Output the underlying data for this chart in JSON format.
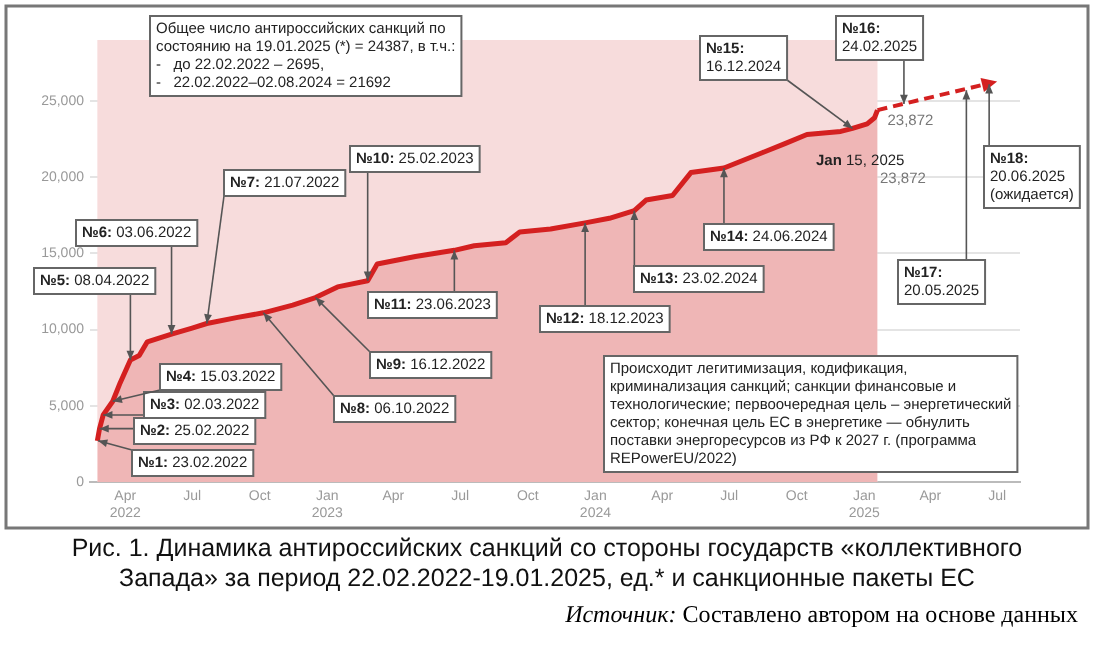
{
  "chart_data": {
    "type": "area",
    "title": "Рис. 1. Динамика антироссийских санкций со стороны государств «коллективного Запада» за период 22.02.2022-19.01.2025, ед.* и санкционные пакеты ЕС",
    "xlim": [
      "2022-02-12",
      "2025-08-01"
    ],
    "xticks": [
      {
        "value": "2022-04",
        "label": "Apr 2022"
      },
      {
        "value": "2022-07",
        "label": "Jul"
      },
      {
        "value": "2022-10",
        "label": "Oct"
      },
      {
        "value": "2023-01",
        "label": "Jan 2023"
      },
      {
        "value": "2023-04",
        "label": "Apr"
      },
      {
        "value": "2023-07",
        "label": "Jul"
      },
      {
        "value": "2023-10",
        "label": "Oct"
      },
      {
        "value": "2024-01",
        "label": "Jan 2024"
      },
      {
        "value": "2024-04",
        "label": "Apr"
      },
      {
        "value": "2024-07",
        "label": "Jul"
      },
      {
        "value": "2024-10",
        "label": "Oct"
      },
      {
        "value": "2025-01",
        "label": "Jan 2025"
      },
      {
        "value": "2025-04",
        "label": "Apr"
      },
      {
        "value": "2025-07",
        "label": "Jul"
      }
    ],
    "ylim": [
      0,
      29000
    ],
    "yticks": [
      0,
      {
        "value": 5000,
        "label": "5,000"
      },
      {
        "value": 10000,
        "label": "10,000"
      },
      {
        "value": 15000,
        "label": "15,000"
      },
      {
        "value": 20000,
        "label": "20,000"
      },
      {
        "value": 25000,
        "label": "25,000"
      }
    ],
    "grid": "y",
    "legend": false,
    "bands": [
      {
        "axis": "x",
        "from": "2022-02-22",
        "to": "2025-01-19",
        "color": "#f7dcdc"
      }
    ],
    "series": [
      {
        "type": "area",
        "color": "#d42020",
        "x": [
          "2022-02-22",
          "2022-02-25",
          "2022-03-02",
          "2022-03-15",
          "2022-03-25",
          "2022-04-08",
          "2022-04-20",
          "2022-05-01",
          "2022-06-03",
          "2022-07-01",
          "2022-07-21",
          "2022-09-01",
          "2022-10-06",
          "2022-11-15",
          "2022-12-16",
          "2023-01-15",
          "2023-02-25",
          "2023-03-10",
          "2023-05-01",
          "2023-06-23",
          "2023-07-20",
          "2023-09-01",
          "2023-09-20",
          "2023-11-01",
          "2023-12-18",
          "2024-01-20",
          "2024-02-23",
          "2024-03-10",
          "2024-04-15",
          "2024-05-10",
          "2024-06-24",
          "2024-08-15",
          "2024-09-15",
          "2024-10-15",
          "2024-11-30",
          "2024-12-16",
          "2025-01-05",
          "2025-01-15",
          "2025-01-19"
        ],
        "values": [
          2700,
          3500,
          4400,
          5300,
          6500,
          8000,
          8300,
          9200,
          9700,
          10100,
          10400,
          10800,
          11100,
          11600,
          12100,
          12800,
          13200,
          14300,
          14800,
          15200,
          15500,
          15700,
          16400,
          16600,
          17000,
          17300,
          17800,
          18500,
          18800,
          20300,
          20600,
          21600,
          22200,
          22800,
          23000,
          23200,
          23500,
          23900,
          24400
        ]
      },
      {
        "type": "line",
        "line_style": "dashed",
        "color": "#d42020",
        "x": [
          "2025-01-19",
          "2025-06-15"
        ],
        "values": [
          24400,
          26100
        ]
      }
    ],
    "annotations": [
      "Общее число антироссийских санкций по состоянию на 19.01.2025 (*) = 24387, в т.ч.:\n-   до 22.02.2022 – 2695,\n-   22.02.2022–02.08.2024 = 21692",
      "Происходит легитимизация, кодификация, криминализация санкций; санкции финансовые и технологические; первоочередная цель – энергетический сектор; конечная цель ЕС в энергетике — обнулить поставки энергоресурсов из РФ к 2027 г. (программа REPowerEU/2022)",
      {
        "text": "№1: 23.02.2022",
        "x": "2022-02-23",
        "y": 2700
      },
      {
        "text": "№2: 25.02.2022",
        "x": "2022-02-25",
        "y": 3500
      },
      {
        "text": "№3: 02.03.2022",
        "x": "2022-03-02",
        "y": 4400
      },
      {
        "text": "№4: 15.03.2022",
        "x": "2022-03-15",
        "y": 5300
      },
      {
        "text": "№5: 08.04.2022",
        "x": "2022-04-08",
        "y": 8000
      },
      {
        "text": "№6: 03.06.2022",
        "x": "2022-06-03",
        "y": 9700
      },
      {
        "text": "№7: 21.07.2022",
        "x": "2022-07-21",
        "y": 10400
      },
      {
        "text": "№8: 06.10.2022",
        "x": "2022-10-06",
        "y": 11100
      },
      {
        "text": "№9: 16.12.2022",
        "x": "2022-12-16",
        "y": 12100
      },
      {
        "text": "№10: 25.02.2023",
        "x": "2023-02-25",
        "y": 13200
      },
      {
        "text": "№11: 23.06.2023",
        "x": "2023-06-23",
        "y": 15200
      },
      {
        "text": "№12: 18.12.2023",
        "x": "2023-12-18",
        "y": 17000
      },
      {
        "text": "№13: 23.02.2024",
        "x": "2024-02-23",
        "y": 17800
      },
      {
        "text": "№14: 24.06.2024",
        "x": "2024-06-24",
        "y": 20600
      },
      {
        "text": "№15: 16.12.2024",
        "x": "2024-12-16",
        "y": 23200
      },
      {
        "text": "№16: 24.02.2025",
        "x": "2025-02-24",
        "y": 24800
      },
      {
        "text": "№17: 20.05.2025",
        "x": "2025-05-20",
        "y": 25700
      },
      {
        "text": "№18: 20.06.2025 (ожидается)",
        "x": "2025-06-20",
        "y": 26100
      },
      "Jan 15, 2025",
      "23,872",
      {
        "text": "23,872",
        "x": "2025-01-19",
        "y": 24400
      },
      "Источник: Составлено автором на основе данных"
    ]
  }
}
